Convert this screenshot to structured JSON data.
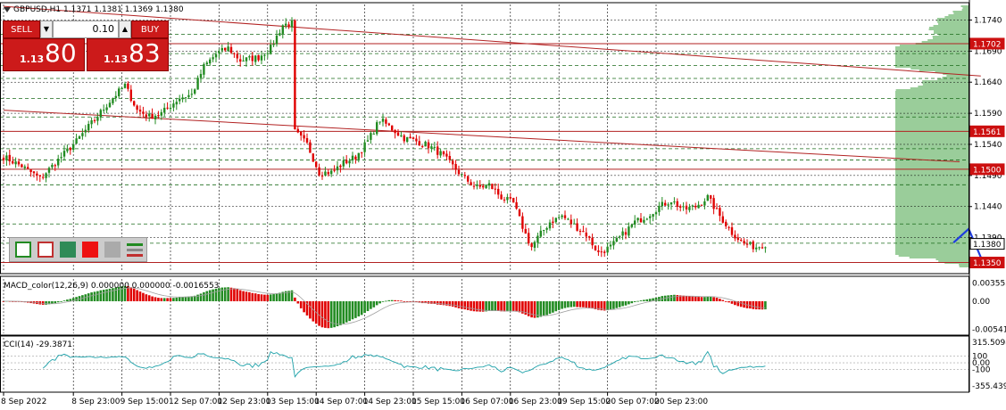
{
  "symbol_header": "GBPUSD,H1  1.1371 1.1381 1.1369 1.1380",
  "trade_panel": {
    "sell_label": "SELL",
    "buy_label": "BUY",
    "lot": "0.10",
    "sell_small": "1.13",
    "sell_big": "80",
    "buy_small": "1.13",
    "buy_big": "83",
    "lot_down_glyph": "▼",
    "lot_up_glyph": "▲"
  },
  "colors": {
    "bull": "#228B22",
    "bear": "#E00000",
    "level": "#B22222",
    "profile": "#9ACD9A",
    "arrow": "#1E3CE0",
    "macd_signal": "#A0A0A0",
    "cci": "#1AA0A8"
  },
  "chart_data": [
    {
      "type": "candlestick",
      "title": "GBPUSD,H1",
      "ylim": [
        1.1335,
        1.1765
      ],
      "yticks": [
        "1.1740",
        "1.1690",
        "1.1640",
        "1.1590",
        "1.1540",
        "1.1490",
        "1.1440",
        "1.1390"
      ],
      "ytick_values": [
        1.174,
        1.169,
        1.164,
        1.159,
        1.154,
        1.149,
        1.144,
        1.139
      ],
      "price_labels": [
        {
          "text": "1.1702",
          "value": 1.1702
        },
        {
          "text": "1.1561",
          "value": 1.1561
        },
        {
          "text": "1.1500",
          "value": 1.15
        },
        {
          "text": "1.1380",
          "value": 1.138
        },
        {
          "text": "1.1350",
          "value": 1.135
        }
      ],
      "horizontal_levels": [
        1.1702,
        1.1561,
        1.15,
        1.135
      ],
      "dashed_levels": [
        1.1717,
        1.1686,
        1.1667,
        1.1646,
        1.1614,
        1.1584,
        1.1533,
        1.1515,
        1.1475,
        1.1412,
        1.1381
      ],
      "trendlines": [
        {
          "from": [
            "8 Sep 2022 00:00",
            1.1762
          ],
          "to": [
            "21 Sep 2022 10:00",
            1.165
          ]
        },
        {
          "from": [
            "8 Sep 2022 00:00",
            1.1595
          ],
          "to": [
            "21 Sep 2022 03:00",
            1.1512
          ]
        }
      ],
      "forecast_path": [
        [
          "21 Sep 2022 01:00",
          1.1382
        ],
        [
          "21 Sep 2022 06:00",
          1.1404
        ],
        [
          "21 Sep 2022 11:00",
          1.1347
        ]
      ],
      "x_start": "8 Sep 2022 00:00",
      "bar_hours": 1,
      "xticks": [
        "8 Sep 2022",
        "8 Sep 23:00",
        "9 Sep 15:00",
        "12 Sep 07:00",
        "12 Sep 23:00",
        "13 Sep 15:00",
        "14 Sep 07:00",
        "14 Sep 23:00",
        "15 Sep 15:00",
        "16 Sep 07:00",
        "16 Sep 23:00",
        "19 Sep 15:00",
        "20 Sep 07:00",
        "20 Sep 23:00"
      ],
      "close_anchors": [
        [
          0,
          1.152
        ],
        [
          6,
          1.1505
        ],
        [
          12,
          1.1485
        ],
        [
          18,
          1.1515
        ],
        [
          24,
          1.1545
        ],
        [
          30,
          1.158
        ],
        [
          36,
          1.1615
        ],
        [
          40,
          1.1635
        ],
        [
          44,
          1.1595
        ],
        [
          48,
          1.1585
        ],
        [
          52,
          1.159
        ],
        [
          58,
          1.1615
        ],
        [
          62,
          1.162
        ],
        [
          66,
          1.1665
        ],
        [
          70,
          1.1685
        ],
        [
          74,
          1.1695
        ],
        [
          78,
          1.1675
        ],
        [
          84,
          1.168
        ],
        [
          88,
          1.1695
        ],
        [
          92,
          1.1732
        ],
        [
          95,
          1.1735
        ],
        [
          96,
          1.156
        ],
        [
          100,
          1.154
        ],
        [
          104,
          1.1495
        ],
        [
          108,
          1.1495
        ],
        [
          112,
          1.151
        ],
        [
          116,
          1.152
        ],
        [
          120,
          1.1545
        ],
        [
          124,
          1.158
        ],
        [
          128,
          1.1565
        ],
        [
          132,
          1.155
        ],
        [
          136,
          1.1545
        ],
        [
          140,
          1.1538
        ],
        [
          144,
          1.1525
        ],
        [
          148,
          1.1505
        ],
        [
          152,
          1.1485
        ],
        [
          156,
          1.147
        ],
        [
          160,
          1.1475
        ],
        [
          164,
          1.1455
        ],
        [
          168,
          1.1445
        ],
        [
          172,
          1.1395
        ],
        [
          174,
          1.1375
        ],
        [
          176,
          1.139
        ],
        [
          180,
          1.1415
        ],
        [
          184,
          1.1425
        ],
        [
          188,
          1.141
        ],
        [
          192,
          1.1395
        ],
        [
          196,
          1.1365
        ],
        [
          200,
          1.1375
        ],
        [
          204,
          1.1395
        ],
        [
          208,
          1.1415
        ],
        [
          212,
          1.1425
        ],
        [
          216,
          1.144
        ],
        [
          220,
          1.145
        ],
        [
          224,
          1.1435
        ],
        [
          228,
          1.144
        ],
        [
          232,
          1.1455
        ],
        [
          236,
          1.1425
        ],
        [
          240,
          1.1398
        ],
        [
          244,
          1.138
        ],
        [
          248,
          1.1375
        ],
        [
          251,
          1.138
        ]
      ]
    },
    {
      "type": "bar",
      "title": "MACD_color(12,26,9) 0.000000 0.000000 -0.0016553",
      "ylim": [
        -0.0062,
        0.0043
      ],
      "yticks": [
        "0.003555",
        "0.00",
        "-0.00541"
      ],
      "ytick_values": [
        0.003555,
        0,
        -0.00541
      ]
    },
    {
      "type": "line",
      "title": "CCI(14) -29.3871",
      "ylim": [
        -420,
        380
      ],
      "yticks": [
        "315.5098",
        "100",
        "0.00",
        "-100",
        "-355.439"
      ],
      "ytick_values": [
        315.5098,
        100,
        0,
        -100,
        -355.439
      ]
    }
  ]
}
